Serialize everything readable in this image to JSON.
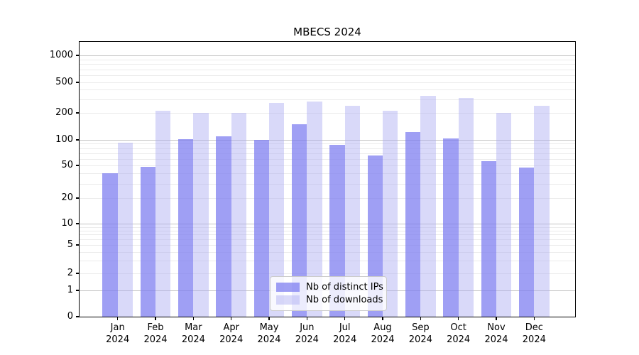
{
  "chart_data": {
    "type": "bar",
    "title": "MBECS 2024",
    "categories": [
      "Jan",
      "Feb",
      "Mar",
      "Apr",
      "May",
      "Jun",
      "Jul",
      "Aug",
      "Sep",
      "Oct",
      "Nov",
      "Dec"
    ],
    "category_year": "2024",
    "series": [
      {
        "name": "Nb of distinct IPs",
        "color": "rgba(122,122,240,0.72)",
        "values": [
          40,
          48,
          102,
          110,
          100,
          150,
          88,
          65,
          122,
          103,
          56,
          47
        ]
      },
      {
        "name": "Nb of downloads",
        "color": "rgba(172,172,242,0.46)",
        "values": [
          92,
          215,
          200,
          200,
          270,
          280,
          245,
          215,
          335,
          310,
          200,
          250
        ]
      }
    ],
    "yscale": "symlog",
    "yticks": [
      0,
      1,
      2,
      5,
      10,
      20,
      50,
      100,
      200,
      500,
      1000
    ],
    "ylim": [
      0,
      1450
    ],
    "xlabel": "",
    "ylabel": "",
    "grid": "horizontal, major and minor (log)",
    "legend_position": "lower center",
    "major_grid_color": "#c4c4c4",
    "minor_grid_color": "#ebebeb"
  }
}
